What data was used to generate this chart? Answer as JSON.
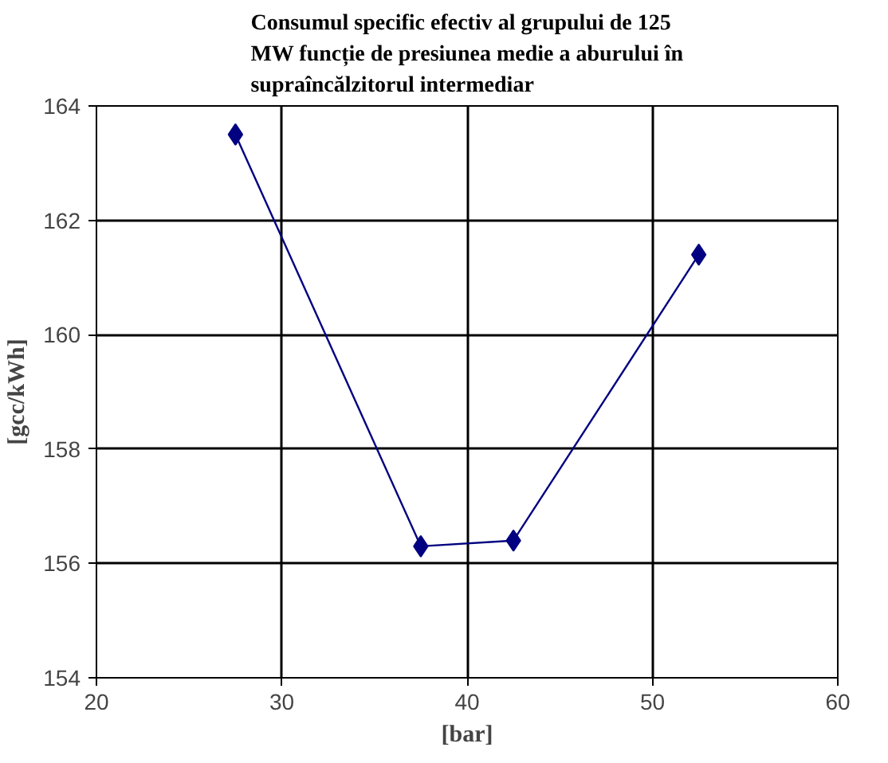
{
  "chart_data": {
    "type": "line",
    "title": "Consumul specific efectiv al grupului de 125\nMW funcție de presiunea medie a aburului în\nsupraîncălzitorul intermediar",
    "xlabel": "[bar]",
    "ylabel": "[gcc/kWh]",
    "series": [
      {
        "color": "#000080",
        "x": [
          27.5,
          37.5,
          42.5,
          52.5
        ],
        "values": [
          163.5,
          156.3,
          156.4,
          161.4
        ]
      }
    ],
    "xlim": [
      20,
      60
    ],
    "xticks": [
      20,
      30,
      40,
      50,
      60
    ],
    "ylim": [
      154,
      164
    ],
    "yticks": [
      154,
      156,
      158,
      160,
      162,
      164
    ],
    "grid": true,
    "marker": "diamond",
    "line_style": "solid"
  }
}
